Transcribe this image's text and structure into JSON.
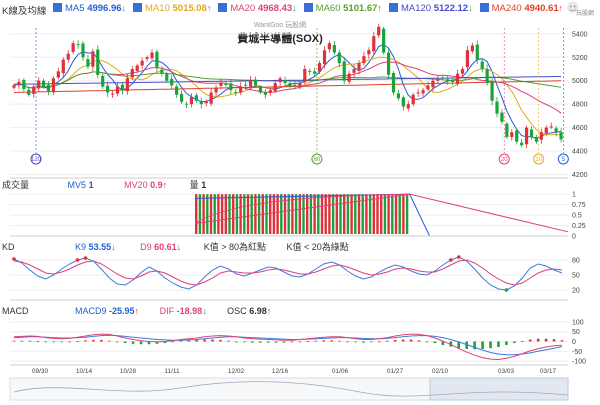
{
  "legend": {
    "label": "K線及均線",
    "items": [
      {
        "name": "MA5",
        "value": "4996.96",
        "arrow": "↓",
        "color": "#1f5fd6"
      },
      {
        "name": "MA10",
        "value": "5015.08",
        "arrow": "↑",
        "color": "#e6a817"
      },
      {
        "name": "MA20",
        "value": "4968.43",
        "arrow": "↓",
        "color": "#e0407a"
      },
      {
        "name": "MA60",
        "value": "5101.67",
        "arrow": "↑",
        "color": "#5aa02c"
      },
      {
        "name": "MA120",
        "value": "5122.12",
        "arrow": "↓",
        "color": "#4a4ac8"
      },
      {
        "name": "MA240",
        "value": "4940.61",
        "arrow": "↑",
        "color": "#e0402a"
      }
    ]
  },
  "watermark": "WantGoo 玩股網",
  "logo_text": "玩股網",
  "chart_title": "費城半導體(SOX)",
  "volume": {
    "label": "成交量",
    "mv5_label": "MV5",
    "mv5_value": "1",
    "mv20_label": "MV20",
    "mv20_value": "0.9",
    "mv20_arrow": "↑",
    "qty_label": "量",
    "qty_value": "1"
  },
  "kd": {
    "label": "KD",
    "k_label": "K9",
    "k_value": "53.55",
    "k_arrow": "↓",
    "d_label": "D9",
    "d_value": "60.61",
    "d_arrow": "↓",
    "note1": "K值 > 80為紅點",
    "note2": "K值 < 20為綠點"
  },
  "macd": {
    "label": "MACD",
    "macd_label": "MACD9",
    "macd_value": "-25.95",
    "macd_arrow": "↑",
    "dif_label": "DIF",
    "dif_value": "-18.98",
    "dif_arrow": "↓",
    "osc_label": "OSC",
    "osc_value": "6.98",
    "osc_arrow": "↑"
  },
  "colors": {
    "up": "#e0303a",
    "down": "#1aa33a",
    "k_line": "#3d7be0",
    "d_line": "#e0407a"
  },
  "chart_data": [
    {
      "type": "candlestick",
      "title": "費城半導體(SOX)",
      "y_ticks": [
        4200,
        4400,
        4600,
        4800,
        5000,
        5200,
        5400
      ],
      "ylim": [
        4170,
        5450
      ],
      "x_tick_labels": [
        "09/30",
        "10/14",
        "10/28",
        "11/11",
        "12/02",
        "12/16",
        "01/06",
        "01/27",
        "02/10",
        "03/03",
        "03/17"
      ],
      "closes": [
        4960,
        4990,
        4930,
        4880,
        4950,
        5000,
        4950,
        4910,
        5020,
        5080,
        5180,
        5230,
        5320,
        5310,
        5200,
        5120,
        5250,
        5050,
        4950,
        4900,
        4890,
        4950,
        4920,
        5020,
        5100,
        5130,
        5170,
        5200,
        5240,
        5110,
        5060,
        5000,
        4960,
        4880,
        4820,
        4800,
        4860,
        4830,
        4800,
        4820,
        4900,
        4940,
        4980,
        4970,
        4920,
        4900,
        4950,
        4960,
        5000,
        4960,
        4900,
        4880,
        4920,
        4980,
        5020,
        4980,
        4950,
        4960,
        4980,
        5100,
        5080,
        5060,
        5150,
        5260,
        5320,
        5240,
        5150,
        5000,
        5060,
        5100,
        5150,
        5210,
        5260,
        5380,
        5460,
        5240,
        5050,
        4900,
        4850,
        4780,
        4800,
        4880,
        4900,
        4920,
        4960,
        5000,
        5010,
        5020,
        5000,
        4990,
        5060,
        5100,
        5260,
        5300,
        5180,
        5100,
        4980,
        4830,
        4720,
        4650,
        4520,
        4560,
        4480,
        4450,
        4600,
        4520,
        4480,
        4560,
        4600,
        4610,
        4560,
        4500
      ],
      "ma_lines": [
        "MA5",
        "MA10",
        "MA20",
        "MA60",
        "MA120",
        "MA240"
      ],
      "period_markers": [
        "120",
        "60",
        "20",
        "10",
        "5"
      ]
    },
    {
      "type": "bar",
      "title": "成交量",
      "y_ticks": [
        0,
        0.25,
        0.5,
        0.75,
        1
      ],
      "ylim": [
        0,
        1.1
      ],
      "volume_bars_count": 58,
      "volume_value": 1,
      "mv5": 1,
      "mv20": 0.9
    },
    {
      "type": "line",
      "title": "KD",
      "y_ticks": [
        20,
        50,
        80
      ],
      "ylim": [
        0,
        100
      ],
      "series": [
        {
          "name": "K9",
          "values": [
            82,
            74,
            60,
            48,
            42,
            50,
            62,
            72,
            80,
            84,
            78,
            62,
            44,
            32,
            30,
            40,
            55,
            66,
            58,
            44,
            34,
            26,
            22,
            30,
            46,
            60,
            68,
            62,
            52,
            48,
            54,
            60,
            66,
            64,
            56,
            48,
            46,
            52,
            62,
            72,
            76,
            70,
            58,
            48,
            42,
            46,
            56,
            64,
            70,
            66,
            58,
            52,
            50,
            58,
            70,
            80,
            86,
            78,
            62,
            44,
            30,
            22,
            20,
            28,
            44,
            64,
            72,
            68,
            60,
            54
          ]
        },
        {
          "name": "D9",
          "values": [
            78,
            76,
            70,
            62,
            54,
            52,
            56,
            62,
            70,
            76,
            78,
            72,
            62,
            52,
            44,
            42,
            48,
            56,
            58,
            54,
            46,
            38,
            32,
            30,
            36,
            44,
            54,
            58,
            56,
            54,
            54,
            56,
            60,
            62,
            60,
            56,
            52,
            52,
            56,
            62,
            68,
            70,
            66,
            60,
            54,
            50,
            52,
            56,
            62,
            64,
            62,
            58,
            56,
            56,
            62,
            70,
            78,
            80,
            74,
            64,
            52,
            42,
            34,
            30,
            34,
            44,
            54,
            60,
            62,
            60
          ]
        }
      ]
    },
    {
      "type": "line",
      "title": "MACD",
      "y_ticks": [
        -100,
        -50,
        0,
        50,
        100
      ],
      "ylim": [
        -120,
        120
      ],
      "series": [
        {
          "name": "MACD9",
          "values": [
            20,
            22,
            24,
            24,
            22,
            20,
            18,
            18,
            20,
            22,
            26,
            30,
            32,
            30,
            26,
            22,
            18,
            14,
            10,
            8,
            6,
            6,
            8,
            10,
            14,
            18,
            22,
            24,
            24,
            22,
            20,
            18,
            16,
            14,
            12,
            10,
            10,
            12,
            14,
            16,
            18,
            20,
            20,
            18,
            16,
            14,
            14,
            16,
            20,
            24,
            28,
            30,
            30,
            26,
            20,
            10,
            -2,
            -16,
            -30,
            -44,
            -56,
            -64,
            -68,
            -68,
            -64,
            -58,
            -50,
            -42,
            -34,
            -26
          ]
        },
        {
          "name": "DIF",
          "values": [
            24,
            26,
            28,
            26,
            20,
            16,
            14,
            16,
            22,
            28,
            34,
            38,
            36,
            28,
            18,
            10,
            4,
            0,
            -2,
            0,
            4,
            10,
            14,
            18,
            24,
            28,
            30,
            28,
            24,
            18,
            14,
            12,
            10,
            8,
            6,
            6,
            10,
            14,
            18,
            22,
            24,
            24,
            20,
            14,
            10,
            10,
            14,
            20,
            28,
            34,
            38,
            36,
            30,
            18,
            2,
            -16,
            -36,
            -54,
            -70,
            -82,
            -90,
            -92,
            -86,
            -76,
            -62,
            -48,
            -36,
            -28,
            -22,
            -19
          ]
        },
        {
          "name": "OSC",
          "values": [
            4,
            4,
            4,
            2,
            -2,
            -4,
            -4,
            -2,
            2,
            6,
            8,
            8,
            4,
            -2,
            -8,
            -12,
            -14,
            -14,
            -12,
            -8,
            -2,
            4,
            6,
            8,
            10,
            10,
            8,
            4,
            0,
            -4,
            -6,
            -6,
            -6,
            -6,
            -6,
            -4,
            0,
            2,
            4,
            6,
            6,
            4,
            0,
            -4,
            -6,
            -4,
            0,
            4,
            8,
            10,
            10,
            6,
            0,
            -8,
            -18,
            -26,
            -34,
            -38,
            -40,
            -38,
            -34,
            -28,
            -18,
            -8,
            2,
            10,
            14,
            14,
            12,
            7
          ]
        }
      ]
    }
  ]
}
